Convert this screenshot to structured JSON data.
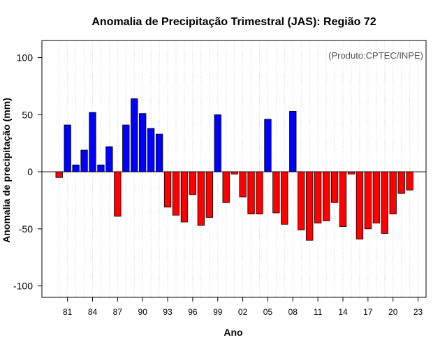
{
  "chart_data": {
    "type": "bar",
    "title": "Anomalia de Precipitação Trimestral (JAS): Região 72",
    "xlabel": "Ano",
    "ylabel": "Anomalia de precipitação (mm)",
    "annotation": "(Produto:CPTEC/INPE)",
    "ylim": [
      -110,
      115
    ],
    "yticks": [
      -100,
      -50,
      0,
      50,
      100
    ],
    "ytick_labels": [
      "-100",
      "-50",
      "0",
      "50",
      "100"
    ],
    "x": [
      1980,
      1981,
      1982,
      1983,
      1984,
      1985,
      1986,
      1987,
      1988,
      1989,
      1990,
      1991,
      1992,
      1993,
      1994,
      1995,
      1996,
      1997,
      1998,
      1999,
      2000,
      2001,
      2002,
      2003,
      2004,
      2005,
      2006,
      2007,
      2008,
      2009,
      2010,
      2011,
      2012,
      2013,
      2014,
      2015,
      2016,
      2017,
      2018,
      2019,
      2020,
      2021,
      2022,
      2023
    ],
    "values": [
      -5,
      41,
      6,
      19,
      52,
      6,
      22,
      -39,
      41,
      64,
      51,
      38,
      33,
      -31,
      -38,
      -44,
      -20,
      -47,
      -40,
      50,
      -27,
      -2,
      -22,
      -37,
      -37,
      46,
      -36,
      -46,
      53,
      -51,
      -60,
      -45,
      -43,
      -27,
      -48,
      -2,
      -59,
      -50,
      -45,
      -54,
      -37,
      -19,
      -16,
      0
    ],
    "xticks": [
      1981,
      1984,
      1987,
      1990,
      1993,
      1996,
      1999,
      2002,
      2005,
      2008,
      2011,
      2014,
      2017,
      2020,
      2023
    ],
    "xtick_labels": [
      "81",
      "84",
      "87",
      "90",
      "93",
      "96",
      "99",
      "02",
      "05",
      "08",
      "11",
      "14",
      "17",
      "20",
      "23"
    ],
    "colors": {
      "positive": "#0000ff",
      "negative": "#ff0000",
      "stroke": "#000000",
      "grid": "#d3d3d3"
    },
    "grid": true
  }
}
